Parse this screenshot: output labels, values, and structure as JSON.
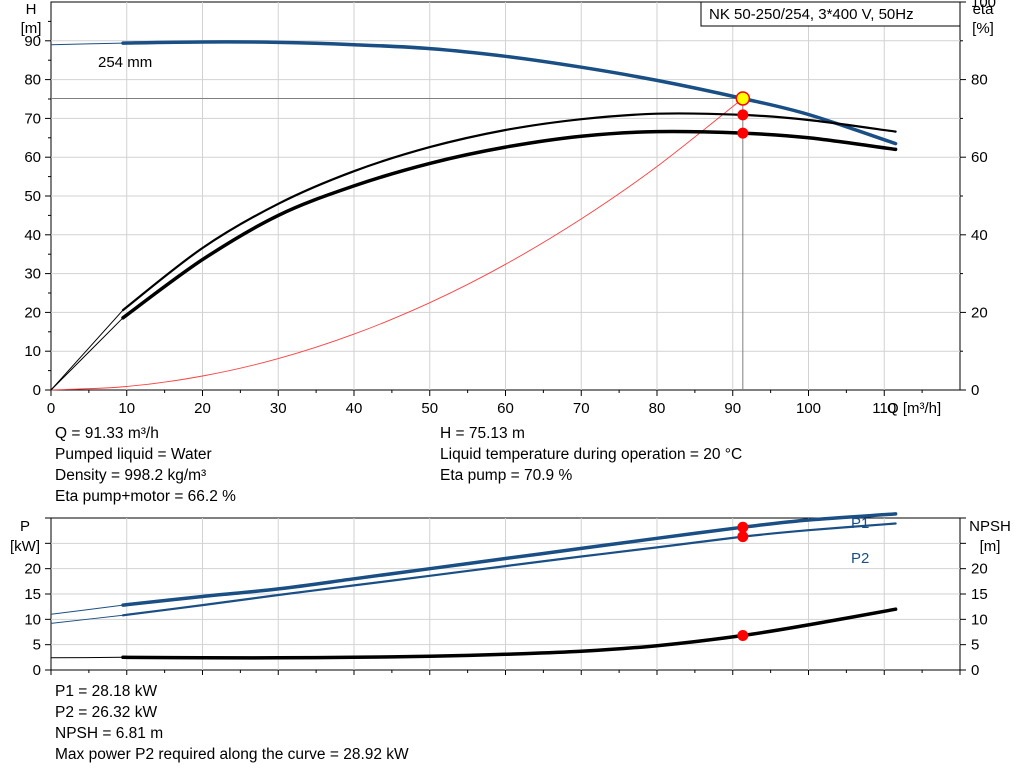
{
  "chart_data": [
    {
      "type": "line",
      "title": "NK 50-250/254, 3*400 V, 50Hz",
      "xlabel": "Q [m³/h]",
      "ylabel_left": [
        "H",
        "[m]"
      ],
      "ylabel_right": [
        "eta",
        "[%]"
      ],
      "xlim": [
        0,
        120
      ],
      "ylim_left": [
        0,
        100
      ],
      "ylim_right": [
        0,
        100
      ],
      "x_ticks": [
        "0",
        "10",
        "20",
        "30",
        "40",
        "50",
        "60",
        "70",
        "80",
        "90",
        "100",
        "110"
      ],
      "y_ticks_left": [
        "0",
        "10",
        "20",
        "30",
        "40",
        "50",
        "60",
        "70",
        "80",
        "90"
      ],
      "y_ticks_right": [
        "0",
        "20",
        "40",
        "60",
        "80",
        "100"
      ],
      "grid": true,
      "curve_label": "254 mm",
      "duty_point": {
        "x": 91.33,
        "y": 75.13
      },
      "series": [
        {
          "axis": "left",
          "color": "#1a4f85",
          "x": [
            0,
            9.5,
            20,
            30,
            40,
            50,
            60,
            70,
            80,
            91.33,
            100,
            111.5
          ],
          "y": [
            89.0,
            89.4,
            89.7,
            89.6,
            89.0,
            88.0,
            86.0,
            83.2,
            79.8,
            75.13,
            71.0,
            63.5
          ]
        },
        {
          "axis": "left",
          "color": "#ff4040",
          "x": [
            0,
            10,
            20,
            30,
            40,
            50,
            60,
            70,
            80,
            91.33
          ],
          "y": [
            0,
            0.9,
            3.6,
            8.1,
            14.4,
            22.5,
            32.4,
            44.1,
            57.6,
            75.13
          ]
        },
        {
          "axis": "right",
          "x": [
            0,
            9.5,
            20,
            30,
            40,
            50,
            60,
            70,
            80,
            91.33,
            100,
            111.5
          ],
          "y": [
            0,
            20.6,
            36.6,
            48.0,
            56.4,
            62.6,
            67.0,
            69.8,
            71.2,
            70.9,
            69.6,
            66.6
          ]
        },
        {
          "axis": "right",
          "x": [
            0,
            9.5,
            20,
            30,
            40,
            50,
            60,
            70,
            80,
            91.33,
            100,
            111.5
          ],
          "y": [
            0,
            18.6,
            33.6,
            45.0,
            52.6,
            58.4,
            62.6,
            65.4,
            66.6,
            66.2,
            65.0,
            62.0
          ]
        }
      ],
      "duty_markers": [
        {
          "axis": "right",
          "y": 70.9
        },
        {
          "axis": "right",
          "y": 66.2
        }
      ]
    },
    {
      "type": "line",
      "ylabel_left": [
        "P",
        "[kW]"
      ],
      "ylabel_right": [
        "NPSH",
        "[m]"
      ],
      "xlim": [
        0,
        120
      ],
      "ylim_left": [
        0,
        30
      ],
      "ylim_right": [
        0,
        30
      ],
      "y_ticks_left": [
        "0",
        "5",
        "10",
        "15",
        "20"
      ],
      "y_ticks_right": [
        "0",
        "5",
        "10",
        "15",
        "20"
      ],
      "grid": true,
      "series": [
        {
          "name": "P1",
          "axis": "left",
          "color": "#1a4f85",
          "x": [
            0,
            9.5,
            20,
            30,
            40,
            50,
            60,
            70,
            80,
            91.33,
            100,
            111.5
          ],
          "y": [
            11.0,
            12.8,
            14.5,
            16.0,
            18.0,
            20.0,
            22.0,
            24.0,
            26.0,
            28.18,
            29.6,
            30.8
          ]
        },
        {
          "name": "P2",
          "axis": "left",
          "color": "#1a4f85",
          "x": [
            0,
            9.5,
            20,
            30,
            40,
            50,
            60,
            70,
            80,
            91.33,
            100,
            111.5
          ],
          "y": [
            9.2,
            10.8,
            12.8,
            14.8,
            16.7,
            18.6,
            20.5,
            22.4,
            24.2,
            26.32,
            27.6,
            28.92
          ]
        },
        {
          "name": "",
          "axis": "right",
          "color": "#000000",
          "x": [
            0,
            9.5,
            20,
            30,
            40,
            50,
            60,
            70,
            80,
            91.33,
            100,
            111.5
          ],
          "y": [
            2.4,
            2.5,
            2.4,
            2.4,
            2.5,
            2.7,
            3.1,
            3.7,
            4.8,
            6.81,
            8.9,
            12.0
          ]
        }
      ],
      "duty_markers": [
        {
          "axis": "left",
          "y": 28.18
        },
        {
          "axis": "left",
          "y": 26.32
        },
        {
          "axis": "right",
          "y": 6.81
        }
      ]
    }
  ],
  "info_top_left": [
    "Q = 91.33 m³/h",
    "Pumped liquid = Water",
    "Density = 998.2 kg/m³",
    "Eta pump+motor = 66.2 %"
  ],
  "info_top_right": [
    "H = 75.13 m",
    "Liquid temperature during operation = 20 °C",
    "Eta pump = 70.9 %"
  ],
  "info_bottom": [
    "P1 = 28.18 kW",
    "P2 = 26.32 kW",
    "NPSH = 6.81 m",
    "Max power P2 required along the curve = 28.92 kW"
  ]
}
